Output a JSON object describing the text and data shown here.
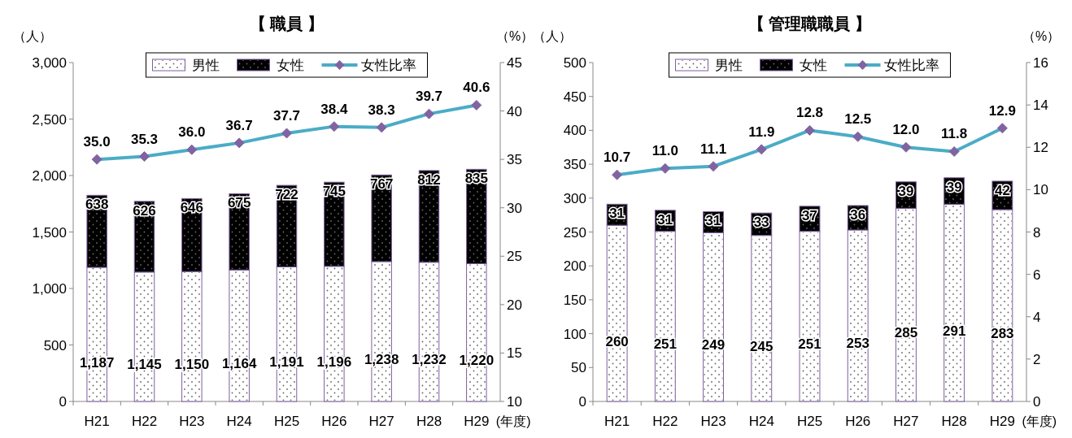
{
  "chart_data": [
    {
      "type": "bar",
      "stacked": true,
      "title": "【 職員 】",
      "xlabel": "(年度)",
      "ylabel": "（人）",
      "y2label": "（%）",
      "legend": "top",
      "marker": "diamond",
      "categories": [
        "H21",
        "H22",
        "H23",
        "H24",
        "H25",
        "H26",
        "H27",
        "H28",
        "H29"
      ],
      "ylim": [
        0,
        3000
      ],
      "yticks": [
        0,
        500,
        {
          "value": 1000,
          "label": "1,000"
        },
        {
          "value": 1500,
          "label": "1,500"
        },
        {
          "value": 2000,
          "label": "2,000"
        },
        {
          "value": 2500,
          "label": "2,500"
        },
        {
          "value": 3000,
          "label": "3,000"
        }
      ],
      "y2lim": [
        10,
        45
      ],
      "y2ticks": [
        10,
        15,
        20,
        25,
        30,
        35,
        40,
        45
      ],
      "series": [
        {
          "name": "男性",
          "color": "#ffffff",
          "values": [
            1187,
            1145,
            1150,
            1164,
            1191,
            1196,
            1238,
            1232,
            1220
          ],
          "value_labels": [
            "1,187",
            "1,145",
            "1,150",
            "1,164",
            "1,191",
            "1,196",
            "1,238",
            "1,232",
            "1,220"
          ]
        },
        {
          "name": "女性",
          "color": "#000000",
          "values": [
            638,
            626,
            646,
            675,
            722,
            745,
            767,
            812,
            835
          ],
          "value_labels": [
            "638",
            "626",
            "646",
            "675",
            "722",
            "745",
            "767",
            "812",
            "835"
          ]
        },
        {
          "name": "女性比率",
          "type": "line",
          "axis": "y2",
          "color": "#4bacc6",
          "values": [
            35.0,
            35.3,
            36.0,
            36.7,
            37.7,
            38.4,
            38.3,
            39.7,
            40.6
          ],
          "value_labels": [
            "35.0",
            "35.3",
            "36.0",
            "36.7",
            "37.7",
            "38.4",
            "38.3",
            "39.7",
            "40.6"
          ]
        }
      ]
    },
    {
      "type": "bar",
      "stacked": true,
      "title": "【 管理職職員 】",
      "xlabel": "(年度)",
      "ylabel": "（人）",
      "y2label": "（%）",
      "legend": "top",
      "marker": "diamond",
      "categories": [
        "H21",
        "H22",
        "H23",
        "H24",
        "H25",
        "H26",
        "H27",
        "H28",
        "H29"
      ],
      "ylim": [
        0,
        500
      ],
      "yticks": [
        0,
        50,
        100,
        150,
        200,
        250,
        300,
        350,
        400,
        450,
        500
      ],
      "y2lim": [
        0,
        16
      ],
      "y2ticks": [
        0,
        2,
        4,
        6,
        8,
        10,
        12,
        14,
        16
      ],
      "series": [
        {
          "name": "男性",
          "color": "#ffffff",
          "values": [
            260,
            251,
            249,
            245,
            251,
            253,
            285,
            291,
            283
          ],
          "value_labels": [
            "260",
            "251",
            "249",
            "245",
            "251",
            "253",
            "285",
            "291",
            "283"
          ]
        },
        {
          "name": "女性",
          "color": "#000000",
          "values": [
            31,
            31,
            31,
            33,
            37,
            36,
            39,
            39,
            42
          ],
          "value_labels": [
            "31",
            "31",
            "31",
            "33",
            "37",
            "36",
            "39",
            "39",
            "42"
          ]
        },
        {
          "name": "女性比率",
          "type": "line",
          "axis": "y2",
          "color": "#4bacc6",
          "values": [
            10.7,
            11.0,
            11.1,
            11.9,
            12.8,
            12.5,
            12.0,
            11.8,
            12.9
          ],
          "value_labels": [
            "10.7",
            "11.0",
            "11.1",
            "11.9",
            "12.8",
            "12.5",
            "12.0",
            "11.8",
            "12.9"
          ]
        }
      ]
    }
  ]
}
